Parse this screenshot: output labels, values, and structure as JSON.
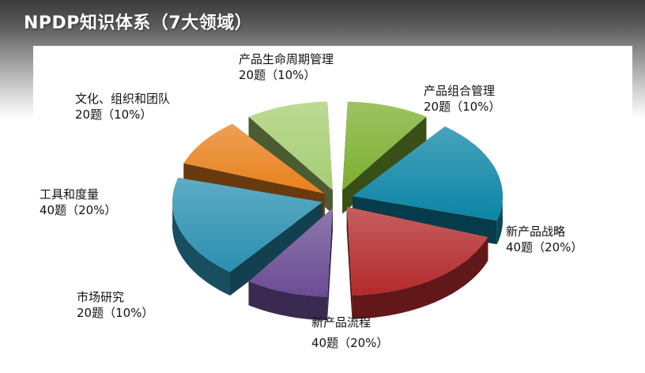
{
  "title": "NPDP知识体系（7大领域）",
  "chart_data": {
    "type": "pie",
    "variant": "3d-exploded",
    "slices": [
      {
        "name": "产品组合管理",
        "value": 10,
        "label": "20题（10%）",
        "color": "#7caf2f"
      },
      {
        "name": "新产品战略",
        "value": 20,
        "label": "40题（20%）",
        "color": "#0b84a5"
      },
      {
        "name": "新产品流程",
        "value": 20,
        "label": "40题（20%）",
        "color": "#b3292b"
      },
      {
        "name": "市场研究",
        "value": 10,
        "label": "20题（10%）",
        "color": "#6a4c93"
      },
      {
        "name": "工具和度量",
        "value": 20,
        "label": "40题（20%）",
        "color": "#2a8fb0"
      },
      {
        "name": "文化、组织和团队",
        "value": 10,
        "label": "20题（10%）",
        "color": "#e8801c"
      },
      {
        "name": "产品生命周期管理",
        "value": 10,
        "label": "20题（10%）",
        "color": "#a6cd72"
      }
    ]
  }
}
